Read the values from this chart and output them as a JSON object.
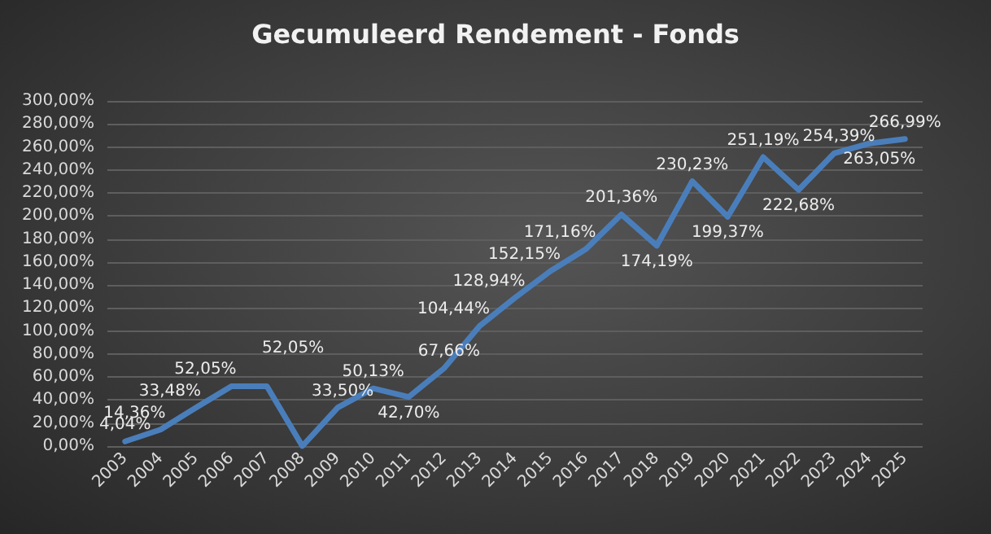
{
  "chart_data": {
    "type": "line",
    "title": "Gecumuleerd Rendement - Fonds",
    "categories": [
      "2003",
      "2004",
      "2005",
      "2006",
      "2007",
      "2008",
      "2009",
      "2010",
      "2011",
      "2012",
      "2013",
      "2014",
      "2015",
      "2016",
      "2017",
      "2018",
      "2019",
      "2020",
      "2021",
      "2022",
      "2023",
      "2024",
      "2025"
    ],
    "series": [
      {
        "color": "#4a7ebb",
        "values": [
          4.04,
          14.36,
          33.48,
          52.05,
          52.05,
          0,
          33.5,
          50.13,
          42.7,
          67.66,
          104.44,
          128.94,
          152.15,
          171.16,
          201.36,
          174.19,
          230.23,
          199.37,
          251.19,
          222.68,
          254.39,
          263.05,
          266.99
        ],
        "value_labels": [
          "4,04%",
          "14,36%",
          "33,48%",
          "52,05%",
          "52,05%",
          null,
          "33,50%",
          "50,13%",
          "42,70%",
          "67,66%",
          "104,44%",
          "128,94%",
          "152,15%",
          "171,16%",
          "201,36%",
          "174,19%",
          "230,23%",
          "199,37%",
          "251,19%",
          "222,68%",
          "254,39%",
          "263,05%",
          "266,99%"
        ]
      }
    ],
    "ylim": [
      0,
      300
    ],
    "yticks": [
      {
        "value": 0,
        "label": "0,00%"
      },
      {
        "value": 20,
        "label": "20,00%"
      },
      {
        "value": 40,
        "label": "40,00%"
      },
      {
        "value": 60,
        "label": "60,00%"
      },
      {
        "value": 80,
        "label": "80,00%"
      },
      {
        "value": 100,
        "label": "100,00%"
      },
      {
        "value": 120,
        "label": "120,00%"
      },
      {
        "value": 140,
        "label": "140,00%"
      },
      {
        "value": 160,
        "label": "160,00%"
      },
      {
        "value": 180,
        "label": "180,00%"
      },
      {
        "value": 200,
        "label": "200,00%"
      },
      {
        "value": 220,
        "label": "220,00%"
      },
      {
        "value": 240,
        "label": "240,00%"
      },
      {
        "value": 260,
        "label": "260,00%"
      },
      {
        "value": 280,
        "label": "280,00%"
      },
      {
        "value": 300,
        "label": "300,00%"
      }
    ],
    "grid": "y",
    "marker": "none",
    "line_style": "solid"
  }
}
